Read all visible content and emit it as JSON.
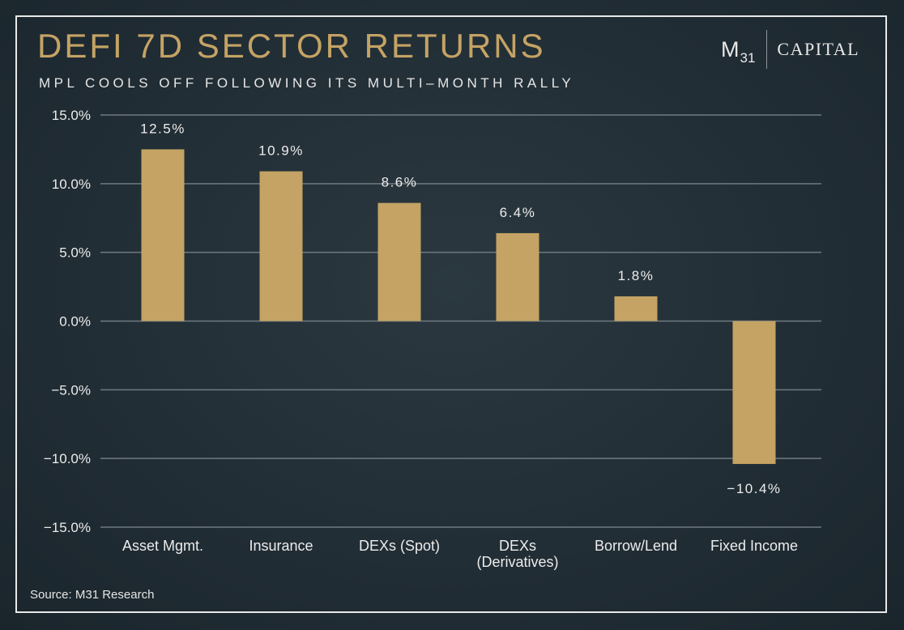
{
  "chart_data": {
    "type": "bar",
    "title": "DEFI 7D SECTOR RETURNS",
    "subtitle": "MPL COOLS OFF FOLLOWING ITS MULTI–MONTH RALLY",
    "categories": [
      [
        "Asset Mgmt."
      ],
      [
        "Insurance"
      ],
      [
        "DEXs (Spot)"
      ],
      [
        "DEXs",
        "(Derivatives)"
      ],
      [
        "Borrow/Lend"
      ],
      [
        "Fixed Income"
      ]
    ],
    "values": [
      12.5,
      10.9,
      8.6,
      6.4,
      1.8,
      -10.4
    ],
    "data_labels": [
      "12.5%",
      "10.9%",
      "8.6%",
      "6.4%",
      "1.8%",
      "−10.4%"
    ],
    "yticks": [
      15,
      10,
      5,
      0,
      -5,
      -10,
      -15
    ],
    "ytick_labels": [
      "15.0%",
      "10.0%",
      "5.0%",
      "0.0%",
      "−5.0%",
      "−10.0%",
      "−15.0%"
    ],
    "ylim": [
      -15,
      15
    ],
    "grid": true,
    "bar_color": "#c4a364",
    "grid_color": "#6f7a80",
    "xlabel": "",
    "ylabel": ""
  },
  "logo": {
    "m": "M",
    "sub": "31",
    "capital": "CAPITAL"
  },
  "source": "Source: M31 Research",
  "colors": {
    "title": "#c4a364",
    "text": "#e6e6e6",
    "background": "#222e36"
  }
}
